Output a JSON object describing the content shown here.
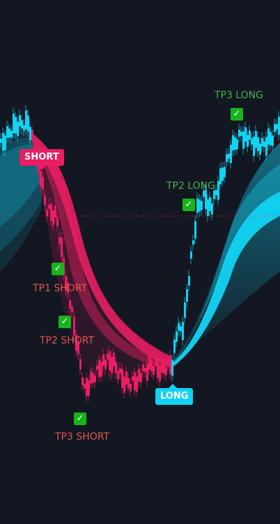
{
  "colors": {
    "background": "#131722",
    "bull": "#12d3f2",
    "bear": "#e91e63",
    "check": "#18b41c",
    "tp_short_text": "#e2574c",
    "tp_long_text": "#4caf50"
  },
  "signals": {
    "short_label": "SHORT",
    "long_label": "LONG"
  },
  "targets": {
    "tp1_short": "TP1 SHORT",
    "tp2_short": "TP2 SHORT",
    "tp3_short": "TP3 SHORT",
    "tp2_long": "TP2 LONG",
    "tp3_long": "TP3 LONG"
  },
  "icons": {
    "check": "checkmark-icon",
    "check_glyph": "✓"
  }
}
